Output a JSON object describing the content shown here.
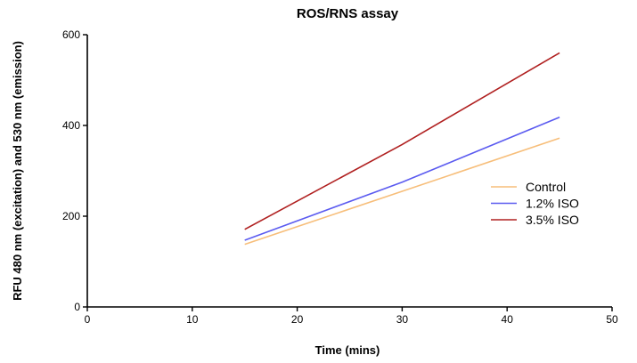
{
  "chart_data": {
    "type": "line",
    "title": "ROS/RNS assay",
    "xlabel": "Time (mins)",
    "ylabel": "RFU 480 nm (excitation) and 530 nm (emission)",
    "xlim": [
      0,
      50
    ],
    "ylim": [
      0,
      600
    ],
    "xticks": [
      0,
      10,
      20,
      30,
      40,
      50
    ],
    "yticks": [
      0,
      200,
      400,
      600
    ],
    "grid": false,
    "legend_position": "right",
    "x": [
      15,
      30,
      45
    ],
    "series": [
      {
        "name": "Control",
        "color": "#f7be7a",
        "values": [
          138,
          255,
          372
        ]
      },
      {
        "name": "1.2% ISO",
        "color": "#5b5bf0",
        "values": [
          147,
          275,
          418
        ]
      },
      {
        "name": "3.5% ISO",
        "color": "#b02020",
        "values": [
          171,
          358,
          560
        ]
      }
    ]
  }
}
